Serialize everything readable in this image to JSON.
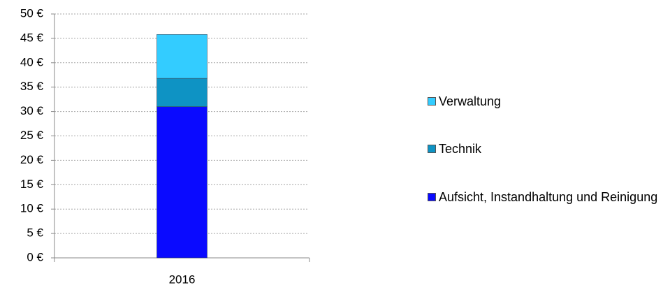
{
  "chart_data": {
    "type": "stacked_bar",
    "categories": [
      "2016"
    ],
    "series": [
      {
        "name": "Aufsicht, Instandhaltung und Reinigung",
        "color": "#0a0aff",
        "values": [
          31
        ]
      },
      {
        "name": "Technik",
        "color": "#0e93c4",
        "values": [
          5.8
        ]
      },
      {
        "name": "Verwaltung",
        "color": "#33ccff",
        "values": [
          9
        ]
      }
    ],
    "ylim": [
      0,
      50
    ],
    "yticks": [
      {
        "value": 0,
        "label": "0 €"
      },
      {
        "value": 5,
        "label": "5 €"
      },
      {
        "value": 10,
        "label": "10 €"
      },
      {
        "value": 15,
        "label": "15 €"
      },
      {
        "value": 20,
        "label": "20 €"
      },
      {
        "value": 25,
        "label": "25 €"
      },
      {
        "value": 30,
        "label": "30 €"
      },
      {
        "value": 35,
        "label": "35 €"
      },
      {
        "value": 40,
        "label": "40 €"
      },
      {
        "value": 45,
        "label": "45 €"
      },
      {
        "value": 50,
        "label": "50 €"
      }
    ],
    "grid": true,
    "legend": "right"
  }
}
